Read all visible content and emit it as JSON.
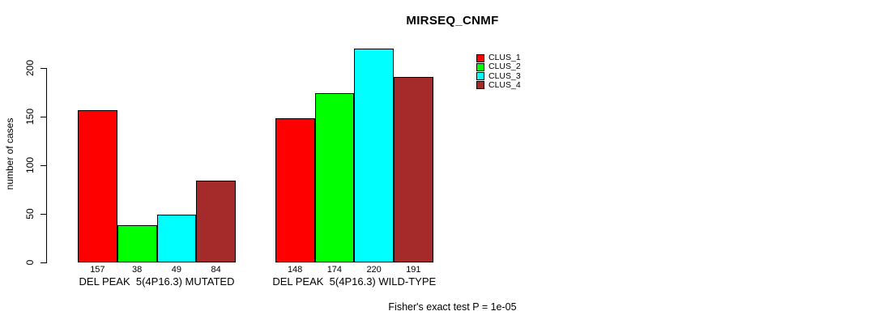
{
  "title": "MIRSEQ_CNMF",
  "footnote": "Fisher's exact test P = 1e-05",
  "colors": {
    "clus_1": "#FF0000",
    "clus_2": "#00FF00",
    "clus_3": "#00FFFF",
    "clus_4": "#A52A2A",
    "bar_border": "#000000",
    "axis": "#000000",
    "background": "#FFFFFF"
  },
  "chart_data": {
    "type": "bar",
    "title": "MIRSEQ_CNMF",
    "ylabel": "number of cases",
    "xlabel": "",
    "ylim": [
      0,
      220
    ],
    "yticks": [
      0,
      50,
      100,
      150,
      200
    ],
    "grid": false,
    "legend_position": "top-right",
    "categories": [
      "DEL PEAK  5(4P16.3) MUTATED",
      "DEL PEAK  5(4P16.3) WILD-TYPE"
    ],
    "series": [
      {
        "name": "CLUS_1",
        "color": "#FF0000",
        "values": [
          157,
          148
        ]
      },
      {
        "name": "CLUS_2",
        "color": "#00FF00",
        "values": [
          38,
          174
        ]
      },
      {
        "name": "CLUS_3",
        "color": "#00FFFF",
        "values": [
          49,
          220
        ]
      },
      {
        "name": "CLUS_4",
        "color": "#A52A2A",
        "values": [
          84,
          191
        ]
      }
    ],
    "value_labels": [
      [
        157,
        38,
        49,
        84
      ],
      [
        148,
        174,
        220,
        191
      ]
    ],
    "annotation": "Fisher's exact test P = 1e-05"
  }
}
